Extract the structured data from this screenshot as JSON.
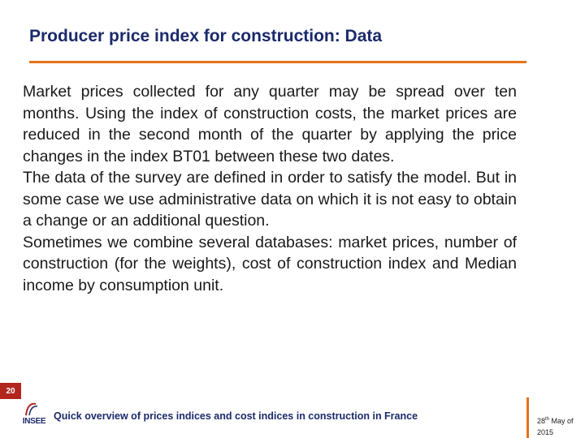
{
  "slide": {
    "title": "Producer price index for construction: Data",
    "paragraphs": [
      "Market prices collected for any quarter may be spread over ten months. Using the index of construction costs, the market prices are reduced in the second month of the quarter by applying the price changes in the index BT01 between these two dates.",
      "The data of the survey are defined in order to satisfy the model. But in some case we use administrative data on which it is not easy to obtain a change or an additional question.",
      "Sometimes we combine several databases: market prices, number of construction (for the weights), cost of construction index and Median income by consumption unit."
    ]
  },
  "footer": {
    "page_number": "20",
    "logo_text": "INSEE",
    "caption": "Quick overview of prices indices and cost indices in construction in France",
    "date_day": "28",
    "date_suffix": "th",
    "date_rest": " May of",
    "date_year": "2015"
  },
  "colors": {
    "title": "#1b2a6b",
    "accent_rule": "#e8731a",
    "page_box": "#b3261e"
  }
}
